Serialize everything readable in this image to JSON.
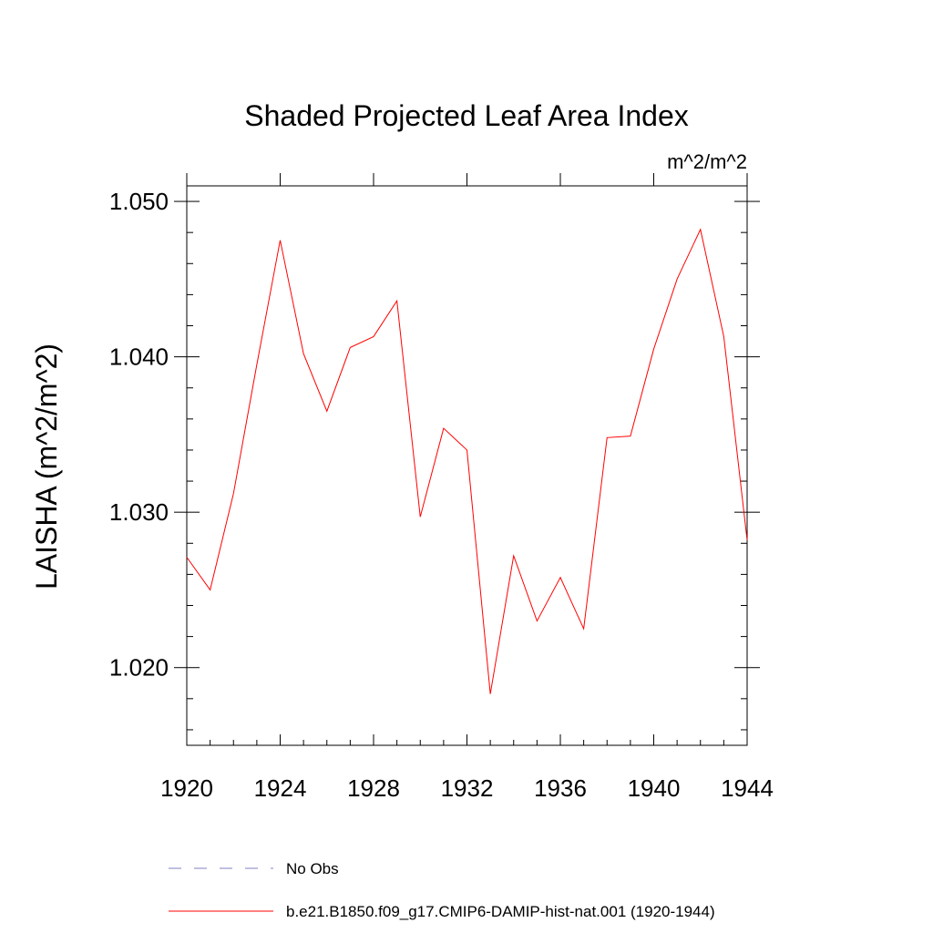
{
  "chart_data": {
    "type": "line",
    "title": "Shaded Projected Leaf Area Index",
    "units": "m^2/m^2",
    "ylabel": "LAISHA  (m^2/m^2)",
    "xlabel": "",
    "xlim": [
      1920,
      1944
    ],
    "ylim": [
      1.015,
      1.051
    ],
    "x_ticks": [
      "1920",
      "1924",
      "1928",
      "1932",
      "1936",
      "1940",
      "1944"
    ],
    "y_ticks": [
      "1.020",
      "1.030",
      "1.040",
      "1.050"
    ],
    "grid": false,
    "legend_position": "bottom",
    "series": [
      {
        "name": "No Obs",
        "color": "#8080c0",
        "style": "dashed",
        "x": [],
        "values": []
      },
      {
        "name": "b.e21.B1850.f09_g17.CMIP6-DAMIP-hist-nat.001 (1920-1944)",
        "color": "#ff0000",
        "style": "solid",
        "x": [
          1920,
          1921,
          1922,
          1923,
          1924,
          1925,
          1926,
          1927,
          1928,
          1929,
          1930,
          1931,
          1932,
          1933,
          1934,
          1935,
          1936,
          1937,
          1938,
          1939,
          1940,
          1941,
          1942,
          1943,
          1944
        ],
        "values": [
          1.0271,
          1.025,
          1.0312,
          1.0395,
          1.0475,
          1.0402,
          1.0365,
          1.0406,
          1.0413,
          1.0436,
          1.0297,
          1.0354,
          1.034,
          1.0183,
          1.0272,
          1.023,
          1.0258,
          1.0225,
          1.0348,
          1.0349,
          1.0405,
          1.045,
          1.0482,
          1.0413,
          1.0282
        ]
      }
    ]
  }
}
